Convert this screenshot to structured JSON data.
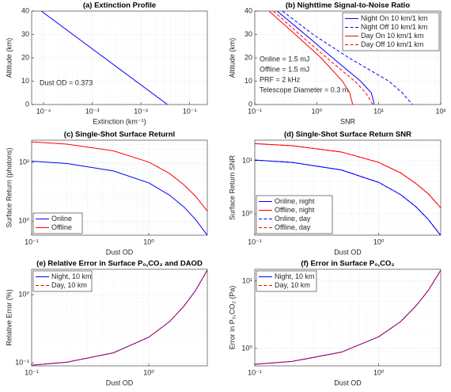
{
  "chart_data": [
    {
      "type": "line",
      "title": "(a) Extinction Profile",
      "xlabel": "Extinction (km⁻¹)",
      "ylabel": "Altitude (km)",
      "xscale": "log",
      "xlim": [
        5.7e-05,
        0.23
      ],
      "xticks": [
        {
          "value": 0.0001,
          "label": "10⁻⁴"
        },
        {
          "value": 0.001,
          "label": "10⁻³"
        },
        {
          "value": 0.01,
          "label": "10⁻²"
        },
        {
          "value": 0.1,
          "label": "10⁻¹"
        }
      ],
      "ylim": [
        0,
        40
      ],
      "yticks": [
        0,
        10,
        20,
        30,
        40
      ],
      "grid": true,
      "x": [
        9e-05,
        0.035
      ],
      "values": [
        40,
        0
      ],
      "color": "#0000ff",
      "annotations": [
        "Dust OD = 0.373"
      ]
    },
    {
      "type": "line",
      "title": "(b) Nighttime Signal-to-Noise Ratio",
      "xlabel": "SNR",
      "ylabel": "Altitude (km)",
      "xscale": "log",
      "xlim": [
        0.1,
        100
      ],
      "xticks": [
        {
          "value": 0.1,
          "label": "10⁻¹"
        },
        {
          "value": 1,
          "label": "10⁰"
        },
        {
          "value": 10,
          "label": "10¹"
        },
        {
          "value": 100,
          "label": "10²"
        }
      ],
      "ylim": [
        0,
        40
      ],
      "yticks": [
        0,
        10,
        20,
        30,
        40
      ],
      "grid": true,
      "legend": "upper right",
      "axis_of_x": "values",
      "series": [
        {
          "name": "Night On  10 km/1 km",
          "color": "#0000ff",
          "linestyle": "solid",
          "x": [
            0.23,
            0.65,
            1.8,
            5.1,
            7.6,
            8.5
          ],
          "values": [
            40,
            30,
            20,
            10,
            5,
            0
          ]
        },
        {
          "name": "Night Off  10 km/1 km",
          "color": "#0000ff",
          "linestyle": "dashed",
          "x": [
            0.28,
            0.87,
            3.3,
            14.6,
            24,
            35
          ],
          "values": [
            40,
            30,
            20,
            10,
            5,
            0
          ]
        },
        {
          "name": "Day On  10 km/1 km",
          "color": "#ff0000",
          "linestyle": "solid",
          "x": [
            0.17,
            0.45,
            1.17,
            2.6,
            3.4,
            3.8
          ],
          "values": [
            40,
            30,
            20,
            10,
            5,
            0
          ]
        },
        {
          "name": "Day Off  10 km/1 km",
          "color": "#ff0000",
          "linestyle": "dashed",
          "x": [
            0.2,
            0.53,
            1.45,
            4.1,
            6.2,
            8
          ],
          "values": [
            40,
            30,
            20,
            10,
            5,
            0
          ]
        }
      ],
      "annotations": [
        "Online = 1.5 mJ",
        "Offline = 1.5 mJ",
        "PRF = 2 kHz",
        "Telescope Diameter = 0.3 m"
      ]
    },
    {
      "type": "line",
      "title": "(c) Single-Shot Surface Returnl",
      "xlabel": "Dust OD",
      "ylabel": "Surface Return (photons)",
      "xscale": "log",
      "xlim": [
        0.1,
        3.16
      ],
      "xticks": [
        {
          "value": 0.1,
          "label": "10⁻¹"
        },
        {
          "value": 1,
          "label": "10⁰"
        }
      ],
      "yscale": "log",
      "ylim": [
        0.33,
        570
      ],
      "yticks": [
        {
          "value": 1,
          "label": "10⁰"
        },
        {
          "value": 100,
          "label": "10²"
        }
      ],
      "grid": true,
      "legend": "lower left",
      "series": [
        {
          "name": "Online",
          "color": "#0000ff",
          "linestyle": "solid",
          "x": [
            0.1,
            0.2,
            0.5,
            1,
            1.5,
            2,
            2.5,
            3.16
          ],
          "values": [
            110,
            91,
            51,
            20,
            7.7,
            3.0,
            1.15,
            0.33
          ]
        },
        {
          "name": "Offline",
          "color": "#ff0000",
          "linestyle": "solid",
          "x": [
            0.1,
            0.2,
            0.5,
            1,
            1.5,
            2,
            2.5,
            3.16
          ],
          "values": [
            500,
            419,
            246,
            102,
            42,
            17,
            7.1,
            2.2
          ]
        }
      ]
    },
    {
      "type": "line",
      "title": "(d) Single-Shot Surface Return SNR",
      "xlabel": "Dust OD",
      "ylabel": "Surface Return SNR",
      "xscale": "log",
      "xlim": [
        0.1,
        3.16
      ],
      "xticks": [
        {
          "value": 0.1,
          "label": "10⁻¹"
        },
        {
          "value": 1,
          "label": "10⁰"
        }
      ],
      "yscale": "log",
      "ylim": [
        0.395,
        24.4
      ],
      "yticks": [
        {
          "value": 1,
          "label": "10⁰"
        },
        {
          "value": 10,
          "label": "10¹"
        }
      ],
      "grid": true,
      "legend": "lower left",
      "series": [
        {
          "name": "Online, night",
          "color": "#0000ff",
          "linestyle": "solid",
          "x": [
            0.1,
            0.2,
            0.5,
            1,
            1.5,
            2,
            2.5,
            3.16
          ],
          "values": [
            10.3,
            9.3,
            6.7,
            3.9,
            2.3,
            1.35,
            0.79,
            0.39
          ]
        },
        {
          "name": "Offline, night",
          "color": "#ff0000",
          "linestyle": "solid",
          "x": [
            0.1,
            0.2,
            0.5,
            1,
            1.5,
            2,
            2.5,
            3.16
          ],
          "values": [
            21,
            19.2,
            14.6,
            9.3,
            5.9,
            3.7,
            2.4,
            1.3
          ]
        },
        {
          "name": "Online, day",
          "color": "#0000ff",
          "linestyle": "dashed",
          "x": [
            0.1,
            0.2,
            0.5,
            1,
            1.5,
            2,
            2.5,
            3.16
          ],
          "values": [
            10.3,
            9.3,
            6.7,
            3.9,
            2.3,
            1.35,
            0.79,
            0.39
          ]
        },
        {
          "name": "Offline, day",
          "color": "#ff0000",
          "linestyle": "dashed",
          "x": [
            0.1,
            0.2,
            0.5,
            1,
            1.5,
            2,
            2.5,
            3.16
          ],
          "values": [
            21,
            19.2,
            14.6,
            9.3,
            5.9,
            3.7,
            2.4,
            1.3
          ]
        }
      ]
    },
    {
      "type": "line",
      "title": "(e) Relative Error in Surface P₀,CO₂ and DAOD",
      "xlabel": "Dust OD",
      "ylabel": "Relative Error (%)",
      "xscale": "log",
      "xlim": [
        0.1,
        3.16
      ],
      "xticks": [
        {
          "value": 0.1,
          "label": "10⁻¹"
        },
        {
          "value": 1,
          "label": "10⁰"
        }
      ],
      "yscale": "log",
      "ylim": [
        0.09,
        2.36
      ],
      "yticks": [
        {
          "value": 0.1,
          "label": "10⁻¹"
        },
        {
          "value": 1,
          "label": "10⁰"
        }
      ],
      "grid": true,
      "legend": "upper left",
      "series": [
        {
          "name": "Night, 10 km",
          "color": "#0000ff",
          "linestyle": "solid",
          "x": [
            0.1,
            0.2,
            0.5,
            1,
            1.5,
            2,
            2.5,
            3.16
          ],
          "values": [
            0.092,
            0.102,
            0.14,
            0.237,
            0.4,
            0.68,
            1.14,
            2.3
          ]
        },
        {
          "name": "Day, 10 km",
          "color": "#ff0000",
          "linestyle": "dashed",
          "x": [
            0.1,
            0.2,
            0.5,
            1,
            1.5,
            2,
            2.5,
            3.16
          ],
          "values": [
            0.092,
            0.102,
            0.14,
            0.237,
            0.4,
            0.68,
            1.14,
            2.3
          ]
        }
      ]
    },
    {
      "type": "line",
      "title": "(f) Error in Surface P₀,CO₂",
      "xlabel": "Dust OD",
      "ylabel": "Error in P₀,CO₂ (Pa)",
      "xscale": "log",
      "xlim": [
        0.1,
        3.16
      ],
      "xticks": [
        {
          "value": 0.1,
          "label": "10⁻¹"
        },
        {
          "value": 1,
          "label": "10⁰"
        }
      ],
      "yscale": "log",
      "ylim": [
        0.55,
        15
      ],
      "yticks": [
        {
          "value": 1,
          "label": "10⁰"
        },
        {
          "value": 10,
          "label": "10¹"
        }
      ],
      "grid": true,
      "legend": "upper left",
      "series": [
        {
          "name": "Night, 10 km",
          "color": "#0000ff",
          "linestyle": "solid",
          "x": [
            0.1,
            0.2,
            0.5,
            1,
            1.5,
            2,
            2.5,
            3.16
          ],
          "values": [
            0.58,
            0.64,
            0.88,
            1.49,
            2.5,
            4.3,
            7.2,
            14.5
          ]
        },
        {
          "name": "Day, 10 km",
          "color": "#ff0000",
          "linestyle": "dashed",
          "x": [
            0.1,
            0.2,
            0.5,
            1,
            1.5,
            2,
            2.5,
            3.16
          ],
          "values": [
            0.58,
            0.64,
            0.88,
            1.49,
            2.5,
            4.3,
            7.2,
            14.5
          ]
        }
      ]
    }
  ]
}
